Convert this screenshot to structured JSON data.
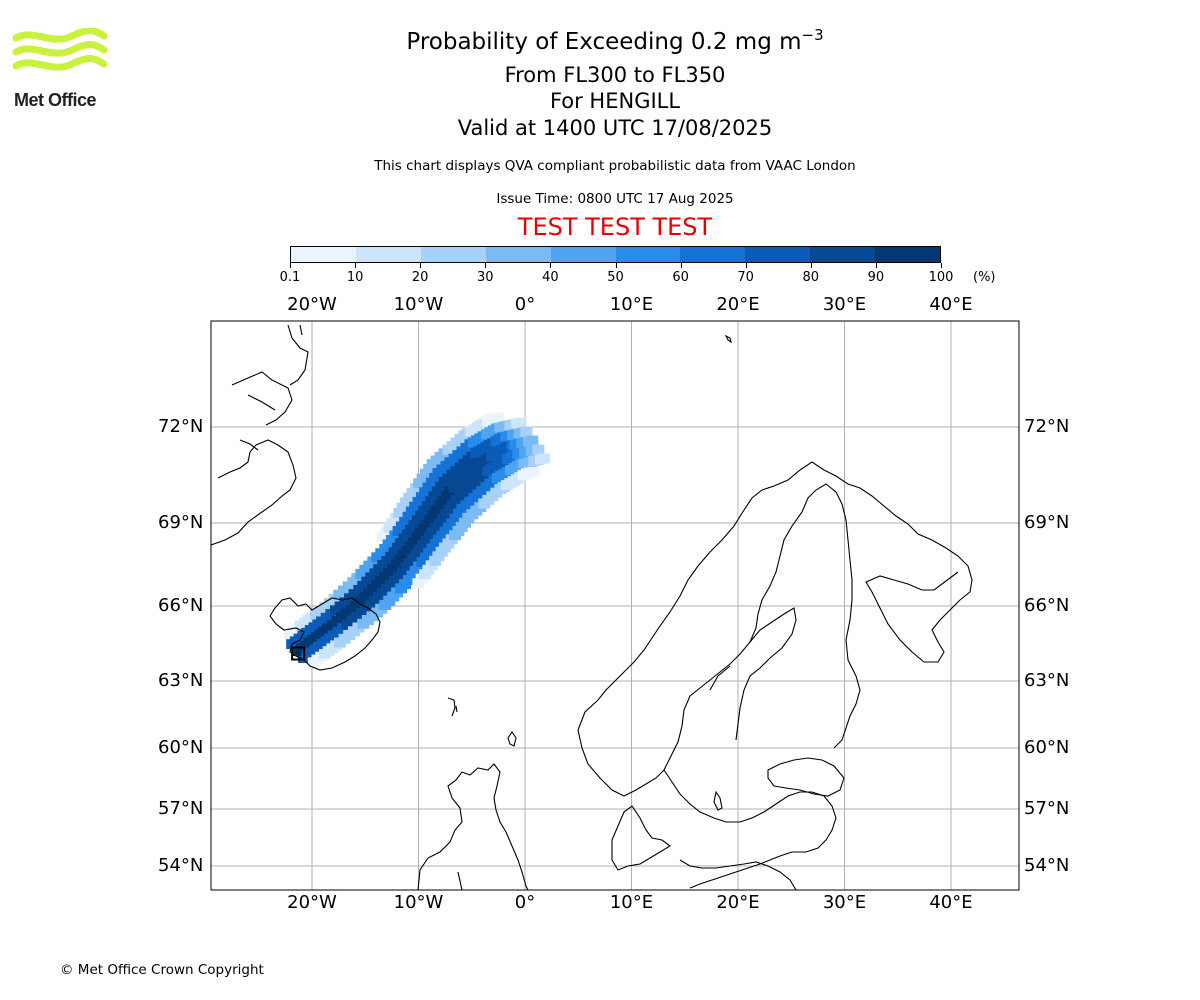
{
  "logo": {
    "name": "Met Office",
    "color": "#c8f23c"
  },
  "title": {
    "line1_main": "Probability of Exceeding 0.2 mg m",
    "line1_sup": "−3",
    "line2": "From FL300 to FL350",
    "line3": "For HENGILL",
    "line4": "Valid at 1400 UTC 17/08/2025"
  },
  "subtitle": "This chart displays QVA compliant probabilistic data from VAAC London",
  "issue_time": "Issue Time: 0800 UTC 17 Aug 2025",
  "test_banner": {
    "text": "TEST TEST TEST",
    "color": "#e60000"
  },
  "colorbar": {
    "ticks": [
      "0.1",
      "10",
      "20",
      "30",
      "40",
      "50",
      "60",
      "70",
      "80",
      "90",
      "100"
    ],
    "unit": "(%)",
    "colors": [
      "#eaf4ff",
      "#cce5fb",
      "#a8d1f8",
      "#7cbaf4",
      "#4fa3f0",
      "#2a8cea",
      "#1572d6",
      "#0a5cb8",
      "#064995",
      "#043874",
      "#022a55"
    ]
  },
  "map": {
    "lon_labels": [
      "20°W",
      "10°W",
      "0°",
      "10°E",
      "20°E",
      "30°E",
      "40°E"
    ],
    "lat_labels": [
      "72°N",
      "69°N",
      "66°N",
      "63°N",
      "60°N",
      "57°N",
      "54°N"
    ],
    "grid": true,
    "source_marker": "Hengill volcano"
  },
  "chart_data": {
    "type": "heatmap",
    "title": "Probability of Exceeding 0.2 mg m−3",
    "variable": "Probability (%)",
    "levels": [
      0.1,
      10,
      20,
      30,
      40,
      50,
      60,
      70,
      80,
      90,
      100
    ],
    "source": {
      "name": "HENGILL",
      "lon": -21.3,
      "lat": 64.1
    },
    "plume_axis": [
      {
        "lon": -21.3,
        "lat": 64.2,
        "prob": 95,
        "halfwidth_deg": 0.6
      },
      {
        "lon": -18.5,
        "lat": 65.1,
        "prob": 95,
        "halfwidth_deg": 0.8
      },
      {
        "lon": -15.0,
        "lat": 66.3,
        "prob": 95,
        "halfwidth_deg": 1.0
      },
      {
        "lon": -12.0,
        "lat": 67.5,
        "prob": 92,
        "halfwidth_deg": 1.4
      },
      {
        "lon": -9.5,
        "lat": 68.8,
        "prob": 92,
        "halfwidth_deg": 1.8
      },
      {
        "lon": -7.0,
        "lat": 70.0,
        "prob": 90,
        "halfwidth_deg": 2.0
      },
      {
        "lon": -4.0,
        "lat": 70.9,
        "prob": 85,
        "halfwidth_deg": 1.8
      },
      {
        "lon": -1.5,
        "lat": 71.4,
        "prob": 70,
        "halfwidth_deg": 1.5
      },
      {
        "lon": 1.0,
        "lat": 71.6,
        "prob": 25,
        "halfwidth_deg": 1.2
      }
    ],
    "xlim": [
      -29.5,
      46
    ],
    "ylim": [
      52.7,
      75
    ]
  },
  "footer": "© Met Office Crown Copyright"
}
